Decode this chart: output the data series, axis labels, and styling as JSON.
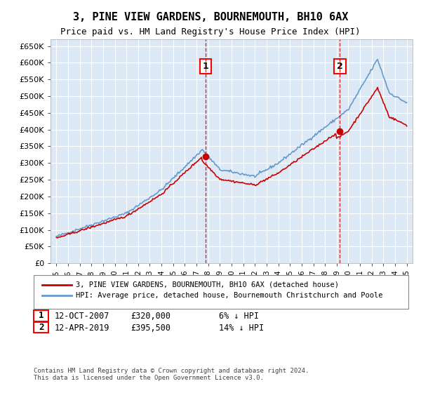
{
  "title": "3, PINE VIEW GARDENS, BOURNEMOUTH, BH10 6AX",
  "subtitle": "Price paid vs. HM Land Registry's House Price Index (HPI)",
  "background_color": "#dce9f5",
  "plot_bg_color": "#dce9f5",
  "ylim": [
    0,
    670000
  ],
  "yticks": [
    0,
    50000,
    100000,
    150000,
    200000,
    250000,
    300000,
    350000,
    400000,
    450000,
    500000,
    550000,
    600000,
    650000
  ],
  "ytick_labels": [
    "£0",
    "£50K",
    "£100K",
    "£150K",
    "£200K",
    "£250K",
    "£300K",
    "£350K",
    "£400K",
    "£450K",
    "£500K",
    "£550K",
    "£600K",
    "£650K"
  ],
  "sale1_date": 2007.78,
  "sale1_price": 320000,
  "sale1_label": "1",
  "sale2_date": 2019.28,
  "sale2_price": 395500,
  "sale2_label": "2",
  "hpi_color": "#6699cc",
  "price_color": "#cc0000",
  "grid_color": "#ffffff",
  "marker_color": "#cc0000",
  "vline_color": "#cc0000",
  "legend_line1": "3, PINE VIEW GARDENS, BOURNEMOUTH, BH10 6AX (detached house)",
  "legend_line2": "HPI: Average price, detached house, Bournemouth Christchurch and Poole",
  "annotation1_date": "12-OCT-2007",
  "annotation1_price": "£320,000",
  "annotation1_hpi": "6% ↓ HPI",
  "annotation2_date": "12-APR-2019",
  "annotation2_price": "£395,500",
  "annotation2_hpi": "14% ↓ HPI",
  "footer": "Contains HM Land Registry data © Crown copyright and database right 2024.\nThis data is licensed under the Open Government Licence v3.0.",
  "xlabel_years": [
    1995,
    1996,
    1997,
    1998,
    1999,
    2000,
    2001,
    2002,
    2003,
    2004,
    2005,
    2006,
    2007,
    2008,
    2009,
    2010,
    2011,
    2012,
    2013,
    2014,
    2015,
    2016,
    2017,
    2018,
    2019,
    2020,
    2021,
    2022,
    2023,
    2024,
    2025
  ]
}
